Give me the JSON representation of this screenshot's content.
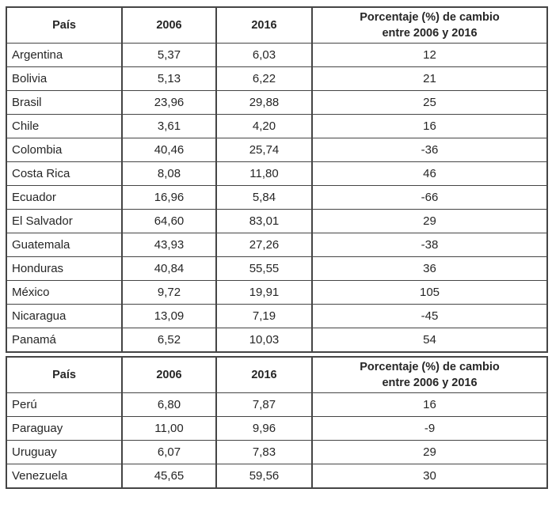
{
  "colors": {
    "border": "#454545",
    "text": "#262626",
    "background": "#ffffff"
  },
  "sections": [
    {
      "header": {
        "pais": "País",
        "y2006": "2006",
        "y2016": "2016",
        "cambio_line1": "Porcentaje (%) de cambio",
        "cambio_line2": "entre 2006 y 2016"
      },
      "rows": [
        [
          "Argentina",
          "5,37",
          "6,03",
          "12"
        ],
        [
          "Bolivia",
          "5,13",
          "6,22",
          "21"
        ],
        [
          "Brasil",
          "23,96",
          "29,88",
          "25"
        ],
        [
          "Chile",
          "3,61",
          "4,20",
          "16"
        ],
        [
          "Colombia",
          "40,46",
          "25,74",
          "-36"
        ],
        [
          "Costa Rica",
          "8,08",
          "11,80",
          "46"
        ],
        [
          "Ecuador",
          "16,96",
          "5,84",
          "-66"
        ],
        [
          "El Salvador",
          "64,60",
          "83,01",
          "29"
        ],
        [
          "Guatemala",
          "43,93",
          "27,26",
          "-38"
        ],
        [
          "Honduras",
          "40,84",
          "55,55",
          "36"
        ],
        [
          "México",
          "9,72",
          "19,91",
          "105"
        ],
        [
          "Nicaragua",
          "13,09",
          "7,19",
          "-45"
        ],
        [
          "Panamá",
          "6,52",
          "10,03",
          "54"
        ]
      ]
    },
    {
      "header": {
        "pais": "País",
        "y2006": "2006",
        "y2016": "2016",
        "cambio_line1": "Porcentaje (%) de cambio",
        "cambio_line2": "entre 2006 y 2016"
      },
      "rows": [
        [
          "Perú",
          "6,80",
          "7,87",
          "16"
        ],
        [
          "Paraguay",
          "11,00",
          "9,96",
          "-9"
        ],
        [
          "Uruguay",
          "6,07",
          "7,83",
          "29"
        ],
        [
          "Venezuela",
          "45,65",
          "59,56",
          "30"
        ]
      ]
    }
  ],
  "chart_data": {
    "type": "table",
    "columns": [
      "País",
      "2006",
      "2016",
      "Porcentaje (%) de cambio entre 2006 y 2016"
    ],
    "rows": [
      [
        "Argentina",
        5.37,
        6.03,
        12
      ],
      [
        "Bolivia",
        5.13,
        6.22,
        21
      ],
      [
        "Brasil",
        23.96,
        29.88,
        25
      ],
      [
        "Chile",
        3.61,
        4.2,
        16
      ],
      [
        "Colombia",
        40.46,
        25.74,
        -36
      ],
      [
        "Costa Rica",
        8.08,
        11.8,
        46
      ],
      [
        "Ecuador",
        16.96,
        5.84,
        -66
      ],
      [
        "El Salvador",
        64.6,
        83.01,
        29
      ],
      [
        "Guatemala",
        43.93,
        27.26,
        -38
      ],
      [
        "Honduras",
        40.84,
        55.55,
        36
      ],
      [
        "México",
        9.72,
        19.91,
        105
      ],
      [
        "Nicaragua",
        13.09,
        7.19,
        -45
      ],
      [
        "Panamá",
        6.52,
        10.03,
        54
      ],
      [
        "Perú",
        6.8,
        7.87,
        16
      ],
      [
        "Paraguay",
        11.0,
        9.96,
        -9
      ],
      [
        "Uruguay",
        6.07,
        7.83,
        29
      ],
      [
        "Venezuela",
        45.65,
        59.56,
        30
      ]
    ],
    "layout": "Single table split into two stacked blocks; the header row repeats before the Perú row. Decimal commas used in display. Grid borders on all cells."
  }
}
